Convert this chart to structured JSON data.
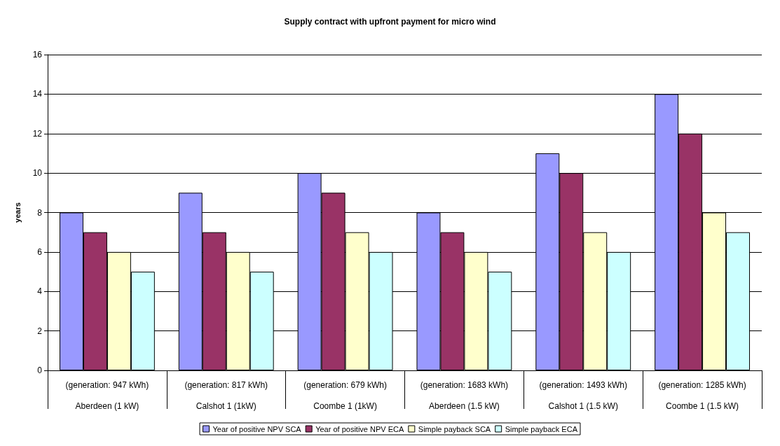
{
  "chart_data": {
    "type": "bar",
    "title": "Supply contract with upfront payment for micro wind",
    "ylabel": "years",
    "categories": [
      "(generation: 947 kWh)\nAberdeen (1 kW)",
      "(generation: 817 kWh)\nCalshot 1 (1kW)",
      "(generation: 679 kWh)\nCoombe 1 (1kW)",
      "(generation: 1683 kWh)\nAberdeen (1.5 kW)",
      "(generation: 1493 kWh)\nCalshot 1 (1.5 kW)",
      "(generation: 1285 kWh)\nCoombe 1 (1.5 kW)"
    ],
    "series": [
      {
        "name": "Year of positive NPV SCA",
        "color": "#9999ff",
        "values": [
          8,
          9,
          10,
          8,
          11,
          14
        ]
      },
      {
        "name": "Year of positive NPV ECA",
        "color": "#993366",
        "values": [
          7,
          7,
          9,
          7,
          10,
          12
        ]
      },
      {
        "name": "Simple payback SCA",
        "color": "#ffffcc",
        "values": [
          6,
          6,
          7,
          6,
          7,
          8
        ]
      },
      {
        "name": "Simple payback ECA",
        "color": "#ccffff",
        "values": [
          5,
          5,
          6,
          5,
          6,
          7
        ]
      }
    ],
    "ylim": [
      0,
      16
    ],
    "yticks": [
      0,
      2,
      4,
      6,
      8,
      10,
      12,
      14,
      16
    ],
    "grid": "y",
    "legend": "bottom"
  }
}
